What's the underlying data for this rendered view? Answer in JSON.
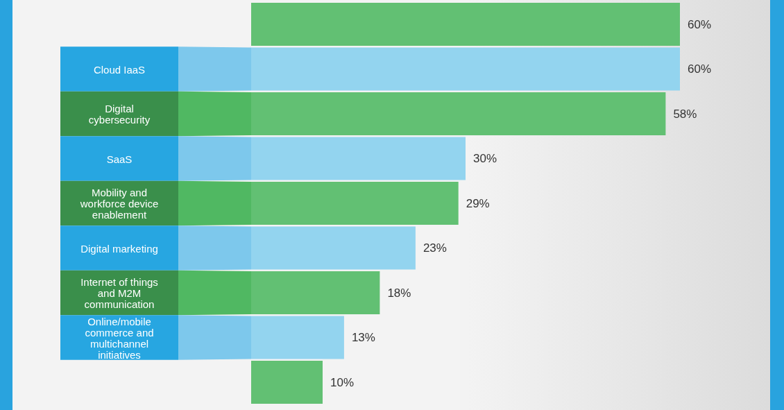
{
  "chart_data": {
    "type": "bar",
    "orientation": "horizontal",
    "categories": [
      null,
      "Cloud IaaS",
      "Digital cybersecurity",
      "SaaS",
      "Mobility and workforce device enablement",
      "Digital marketing",
      "Internet of things and M2M communication",
      "Online/mobile commerce and multichannel initiatives",
      null
    ],
    "values": [
      60,
      60,
      58,
      30,
      29,
      23,
      18,
      13,
      10
    ],
    "colors": [
      "#62c073",
      "#93d4ef",
      "#62c073",
      "#93d4ef",
      "#62c073",
      "#93d4ef",
      "#62c073",
      "#93d4ef",
      "#62c073"
    ],
    "value_labels": [
      "60%",
      "60%",
      "58%",
      "30%",
      "29%",
      "23%",
      "18%",
      "13%",
      "10%"
    ]
  }
}
